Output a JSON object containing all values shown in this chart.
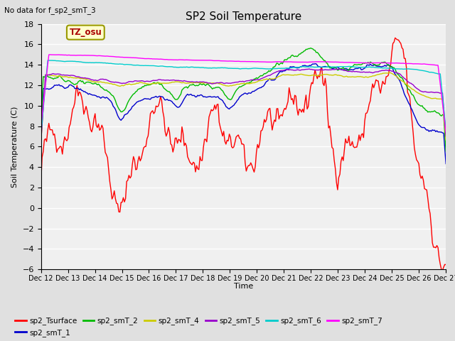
{
  "title": "SP2 Soil Temperature",
  "no_data_text": "No data for f_sp2_smT_3",
  "xlabel": "Time",
  "ylabel": "Soil Temperature (C)",
  "ylim": [
    -6,
    18
  ],
  "yticks": [
    -6,
    -4,
    -2,
    0,
    2,
    4,
    6,
    8,
    10,
    12,
    14,
    16,
    18
  ],
  "xlim": [
    0,
    360
  ],
  "xtick_labels": [
    "Dec 12",
    "Dec 13",
    "Dec 14",
    "Dec 15",
    "Dec 16",
    "Dec 17",
    "Dec 18",
    "Dec 19",
    "Dec 20",
    "Dec 21",
    "Dec 22",
    "Dec 23",
    "Dec 24",
    "Dec 25",
    "Dec 26",
    "Dec 27"
  ],
  "tz_label": "TZ_osu",
  "fig_bg_color": "#e0e0e0",
  "plot_bg_color": "#f0f0f0",
  "grid_color": "#ffffff",
  "series_colors": {
    "sp2_Tsurface": "#ff0000",
    "sp2_smT_1": "#0000cc",
    "sp2_smT_2": "#00bb00",
    "sp2_smT_4": "#cccc00",
    "sp2_smT_5": "#9900cc",
    "sp2_smT_6": "#00cccc",
    "sp2_smT_7": "#ff00ff"
  }
}
